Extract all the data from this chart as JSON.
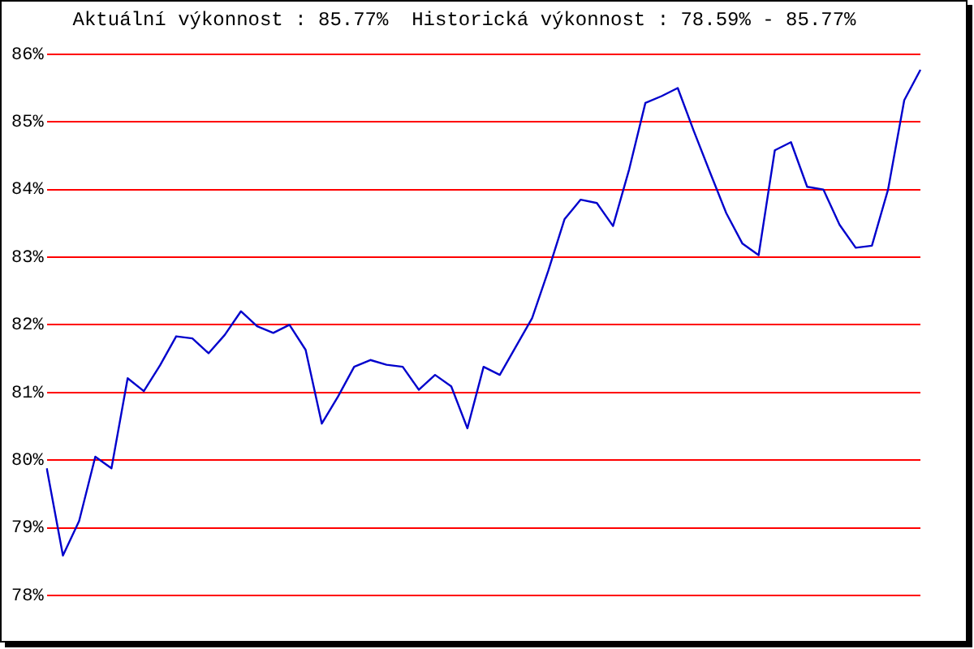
{
  "chart_data": {
    "type": "line",
    "title": "Aktuální výkonnost : 85.77%  Historická výkonnost : 78.59% - 85.77%",
    "categories": [
      null,
      null,
      null,
      null,
      null,
      null,
      null,
      null,
      null,
      null,
      null,
      null,
      null,
      null,
      null,
      null,
      null,
      null,
      null,
      null,
      null,
      null,
      null,
      null,
      null,
      null,
      null,
      null,
      null,
      null,
      null,
      null,
      null,
      null,
      null,
      null,
      null,
      null,
      null,
      null,
      null,
      null,
      null,
      null,
      null,
      null,
      null,
      null,
      null,
      null,
      null,
      null,
      null,
      null,
      null
    ],
    "series": [
      {
        "color": "#0000cc",
        "values": [
          79.88,
          78.59,
          79.1,
          80.05,
          79.88,
          81.21,
          81.02,
          81.4,
          81.83,
          81.8,
          81.58,
          81.85,
          82.2,
          81.98,
          81.88,
          82.0,
          81.63,
          80.54,
          80.94,
          81.38,
          81.48,
          81.41,
          81.38,
          81.04,
          81.26,
          81.09,
          80.47,
          81.38,
          81.26,
          81.68,
          82.1,
          82.8,
          83.56,
          83.85,
          83.8,
          83.46,
          84.3,
          85.28,
          85.38,
          85.5,
          84.86,
          84.25,
          83.65,
          83.2,
          83.03,
          84.58,
          84.7,
          84.04,
          84.0,
          83.48,
          83.14,
          83.17,
          84.0,
          85.32,
          85.77
        ]
      }
    ],
    "ylim": [
      78,
      86
    ],
    "yticks": [
      {
        "value": 78,
        "label": "78%"
      },
      {
        "value": 79,
        "label": "79%"
      },
      {
        "value": 80,
        "label": "80%"
      },
      {
        "value": 81,
        "label": "81%"
      },
      {
        "value": 82,
        "label": "82%"
      },
      {
        "value": 83,
        "label": "83%"
      },
      {
        "value": 84,
        "label": "84%"
      },
      {
        "value": 85,
        "label": "85%"
      },
      {
        "value": 86,
        "label": "86%"
      }
    ],
    "grid": "y",
    "legend": false,
    "tick_labels": "y",
    "marker": "none",
    "line_style": "solid"
  }
}
